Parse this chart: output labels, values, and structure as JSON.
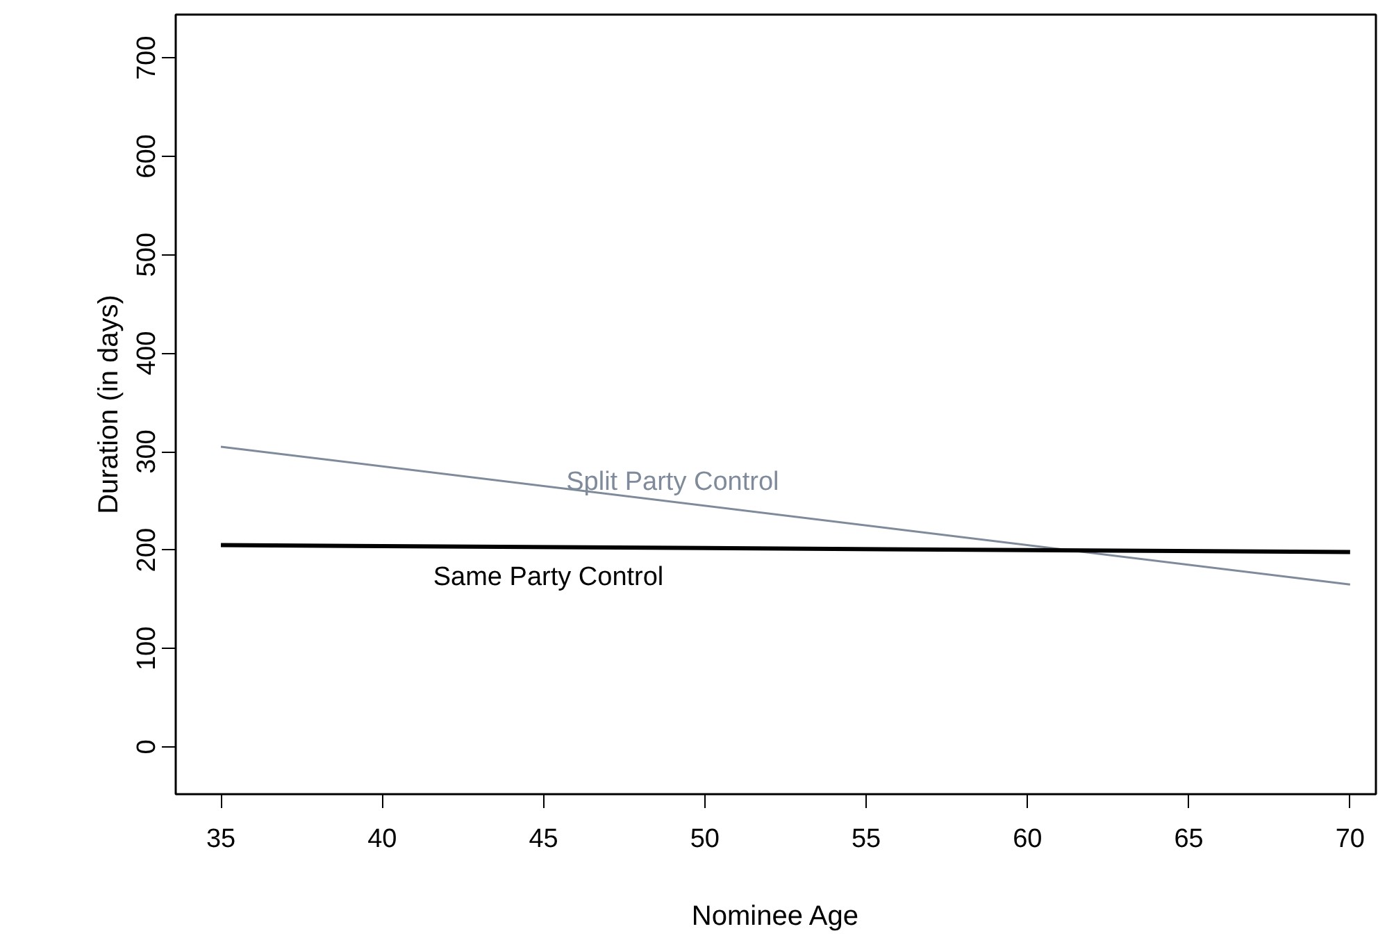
{
  "chart_data": {
    "type": "line",
    "xlabel": "Nominee Age",
    "ylabel": "Duration (in days)",
    "x": [
      35,
      70
    ],
    "series": [
      {
        "name": "Split Party Control",
        "color": "#7f8b9a",
        "values": [
          305,
          165
        ]
      },
      {
        "name": "Same Party Control",
        "color": "#000000",
        "values": [
          205,
          198
        ]
      }
    ],
    "xlim": [
      33.6,
      70.8
    ],
    "ylim": [
      -48,
      744
    ],
    "xticks": [
      35,
      40,
      45,
      50,
      55,
      60,
      65,
      70
    ],
    "yticks": [
      0,
      100,
      200,
      300,
      400,
      500,
      600,
      700
    ],
    "grid": false,
    "marker": "none",
    "line_style": "solid"
  }
}
